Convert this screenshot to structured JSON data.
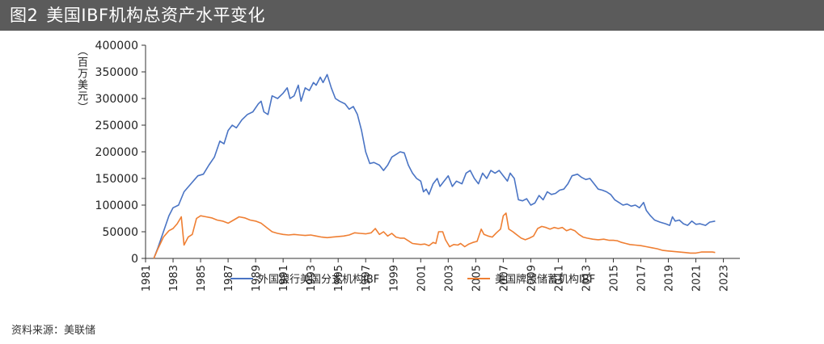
{
  "title": {
    "figure_number": "图2",
    "text": "美国IBF机构总资产水平变化"
  },
  "source": "资料来源：美联储",
  "colors": {
    "title_bg": "#5b5b5b",
    "series_bank": "#4a74c4",
    "series_savings": "#ef7f33",
    "axis": "#333333"
  },
  "chart_data": {
    "type": "line",
    "title": "美国IBF机构总资产水平变化",
    "ylabel": "（百万美元）",
    "xlabel": "",
    "xlim": [
      1981,
      2024.2
    ],
    "ylim": [
      0,
      400000
    ],
    "yticks": [
      0,
      50000,
      100000,
      150000,
      200000,
      250000,
      300000,
      350000,
      400000
    ],
    "ytick_labels": [
      "0",
      "50000",
      "100000",
      "150000",
      "200000",
      "250000",
      "300000",
      "350000",
      "400000"
    ],
    "xticks": [
      1981,
      1983,
      1985,
      1987,
      1989,
      1991,
      1993,
      1995,
      1997,
      1999,
      2001,
      2003,
      2005,
      2007,
      2009,
      2011,
      2013,
      2015,
      2017,
      2019,
      2021,
      2023
    ],
    "xtick_labels": [
      "1981",
      "1983",
      "1985",
      "1987",
      "1989",
      "1991",
      "1993",
      "1995",
      "1997",
      "1999",
      "2001",
      "2003",
      "2005",
      "2007",
      "2009",
      "2011",
      "2013",
      "2015",
      "2017",
      "2019",
      "2021",
      "2023"
    ],
    "legend_position": "bottom",
    "series": [
      {
        "name": "外国银行美国分支机构IBF",
        "color": "#4a74c4",
        "points": [
          [
            1981.6,
            0
          ],
          [
            1981.9,
            20000
          ],
          [
            1982.3,
            50000
          ],
          [
            1982.7,
            80000
          ],
          [
            1983.0,
            95000
          ],
          [
            1983.4,
            100000
          ],
          [
            1983.8,
            125000
          ],
          [
            1984.3,
            140000
          ],
          [
            1984.8,
            155000
          ],
          [
            1985.2,
            158000
          ],
          [
            1985.6,
            175000
          ],
          [
            1986.0,
            190000
          ],
          [
            1986.4,
            220000
          ],
          [
            1986.7,
            215000
          ],
          [
            1987.0,
            240000
          ],
          [
            1987.3,
            250000
          ],
          [
            1987.6,
            245000
          ],
          [
            1988.0,
            260000
          ],
          [
            1988.4,
            270000
          ],
          [
            1988.8,
            275000
          ],
          [
            1989.2,
            290000
          ],
          [
            1989.4,
            295000
          ],
          [
            1989.6,
            275000
          ],
          [
            1989.9,
            270000
          ],
          [
            1990.2,
            305000
          ],
          [
            1990.6,
            300000
          ],
          [
            1991.0,
            310000
          ],
          [
            1991.3,
            320000
          ],
          [
            1991.5,
            300000
          ],
          [
            1991.8,
            305000
          ],
          [
            1992.1,
            325000
          ],
          [
            1992.3,
            295000
          ],
          [
            1992.6,
            320000
          ],
          [
            1992.9,
            315000
          ],
          [
            1993.2,
            330000
          ],
          [
            1993.4,
            325000
          ],
          [
            1993.7,
            340000
          ],
          [
            1993.9,
            330000
          ],
          [
            1994.2,
            345000
          ],
          [
            1994.5,
            320000
          ],
          [
            1994.8,
            300000
          ],
          [
            1995.1,
            295000
          ],
          [
            1995.5,
            290000
          ],
          [
            1995.8,
            280000
          ],
          [
            1996.1,
            285000
          ],
          [
            1996.4,
            270000
          ],
          [
            1996.7,
            240000
          ],
          [
            1997.0,
            200000
          ],
          [
            1997.3,
            178000
          ],
          [
            1997.6,
            180000
          ],
          [
            1998.0,
            175000
          ],
          [
            1998.3,
            165000
          ],
          [
            1998.6,
            175000
          ],
          [
            1998.9,
            190000
          ],
          [
            1999.2,
            195000
          ],
          [
            1999.5,
            200000
          ],
          [
            1999.8,
            198000
          ],
          [
            2000.1,
            175000
          ],
          [
            2000.4,
            160000
          ],
          [
            2000.7,
            150000
          ],
          [
            2001.0,
            145000
          ],
          [
            2001.2,
            125000
          ],
          [
            2001.4,
            130000
          ],
          [
            2001.6,
            120000
          ],
          [
            2001.9,
            140000
          ],
          [
            2002.2,
            150000
          ],
          [
            2002.4,
            135000
          ],
          [
            2002.7,
            145000
          ],
          [
            2003.0,
            155000
          ],
          [
            2003.3,
            135000
          ],
          [
            2003.6,
            145000
          ],
          [
            2004.0,
            140000
          ],
          [
            2004.3,
            160000
          ],
          [
            2004.6,
            165000
          ],
          [
            2004.9,
            150000
          ],
          [
            2005.2,
            140000
          ],
          [
            2005.5,
            160000
          ],
          [
            2005.8,
            150000
          ],
          [
            2006.1,
            165000
          ],
          [
            2006.4,
            160000
          ],
          [
            2006.7,
            165000
          ],
          [
            2007.0,
            155000
          ],
          [
            2007.3,
            145000
          ],
          [
            2007.5,
            160000
          ],
          [
            2007.8,
            150000
          ],
          [
            2008.1,
            110000
          ],
          [
            2008.4,
            108000
          ],
          [
            2008.7,
            112000
          ],
          [
            2009.0,
            100000
          ],
          [
            2009.3,
            104000
          ],
          [
            2009.6,
            118000
          ],
          [
            2009.9,
            110000
          ],
          [
            2010.2,
            125000
          ],
          [
            2010.5,
            120000
          ],
          [
            2010.8,
            122000
          ],
          [
            2011.1,
            128000
          ],
          [
            2011.4,
            130000
          ],
          [
            2011.7,
            140000
          ],
          [
            2012.0,
            155000
          ],
          [
            2012.4,
            158000
          ],
          [
            2012.7,
            152000
          ],
          [
            2013.0,
            148000
          ],
          [
            2013.3,
            150000
          ],
          [
            2013.6,
            140000
          ],
          [
            2013.9,
            130000
          ],
          [
            2014.2,
            128000
          ],
          [
            2014.5,
            125000
          ],
          [
            2014.8,
            120000
          ],
          [
            2015.1,
            110000
          ],
          [
            2015.4,
            105000
          ],
          [
            2015.7,
            100000
          ],
          [
            2016.0,
            102000
          ],
          [
            2016.3,
            98000
          ],
          [
            2016.6,
            100000
          ],
          [
            2016.9,
            95000
          ],
          [
            2017.2,
            105000
          ],
          [
            2017.4,
            90000
          ],
          [
            2017.7,
            80000
          ],
          [
            2018.0,
            72000
          ],
          [
            2018.4,
            68000
          ],
          [
            2018.8,
            65000
          ],
          [
            2019.1,
            62000
          ],
          [
            2019.3,
            78000
          ],
          [
            2019.5,
            70000
          ],
          [
            2019.8,
            72000
          ],
          [
            2020.1,
            65000
          ],
          [
            2020.4,
            62000
          ],
          [
            2020.7,
            70000
          ],
          [
            2021.0,
            64000
          ],
          [
            2021.3,
            65000
          ],
          [
            2021.7,
            62000
          ],
          [
            2022.0,
            68000
          ],
          [
            2022.4,
            70000
          ]
        ]
      },
      {
        "name": "美国牌照储蓄机构IBF",
        "color": "#ef7f33",
        "points": [
          [
            1981.6,
            0
          ],
          [
            1981.9,
            18000
          ],
          [
            1982.3,
            40000
          ],
          [
            1982.7,
            52000
          ],
          [
            1983.0,
            56000
          ],
          [
            1983.3,
            65000
          ],
          [
            1983.6,
            78000
          ],
          [
            1983.8,
            25000
          ],
          [
            1984.1,
            40000
          ],
          [
            1984.4,
            45000
          ],
          [
            1984.7,
            75000
          ],
          [
            1985.0,
            80000
          ],
          [
            1985.4,
            78000
          ],
          [
            1985.8,
            76000
          ],
          [
            1986.2,
            72000
          ],
          [
            1986.6,
            70000
          ],
          [
            1987.0,
            66000
          ],
          [
            1987.4,
            72000
          ],
          [
            1987.8,
            78000
          ],
          [
            1988.2,
            76000
          ],
          [
            1988.6,
            72000
          ],
          [
            1989.0,
            70000
          ],
          [
            1989.4,
            66000
          ],
          [
            1989.8,
            58000
          ],
          [
            1990.2,
            50000
          ],
          [
            1990.6,
            47000
          ],
          [
            1991.0,
            45000
          ],
          [
            1991.4,
            44000
          ],
          [
            1991.8,
            45000
          ],
          [
            1992.2,
            44000
          ],
          [
            1992.6,
            43000
          ],
          [
            1993.0,
            44000
          ],
          [
            1993.4,
            42000
          ],
          [
            1993.8,
            40000
          ],
          [
            1994.2,
            39000
          ],
          [
            1994.6,
            40000
          ],
          [
            1995.0,
            41000
          ],
          [
            1995.4,
            42000
          ],
          [
            1995.8,
            44000
          ],
          [
            1996.2,
            48000
          ],
          [
            1996.6,
            47000
          ],
          [
            1997.0,
            46000
          ],
          [
            1997.4,
            48000
          ],
          [
            1997.7,
            56000
          ],
          [
            1998.0,
            45000
          ],
          [
            1998.3,
            50000
          ],
          [
            1998.6,
            42000
          ],
          [
            1998.9,
            47000
          ],
          [
            1999.2,
            40000
          ],
          [
            1999.5,
            38000
          ],
          [
            1999.8,
            38000
          ],
          [
            2000.1,
            33000
          ],
          [
            2000.4,
            28000
          ],
          [
            2000.7,
            27000
          ],
          [
            2001.0,
            26000
          ],
          [
            2001.3,
            27000
          ],
          [
            2001.6,
            24000
          ],
          [
            2001.9,
            30000
          ],
          [
            2002.1,
            28000
          ],
          [
            2002.3,
            50000
          ],
          [
            2002.6,
            50000
          ],
          [
            2002.8,
            35000
          ],
          [
            2003.1,
            22000
          ],
          [
            2003.4,
            26000
          ],
          [
            2003.7,
            25000
          ],
          [
            2003.9,
            28000
          ],
          [
            2004.2,
            22000
          ],
          [
            2004.5,
            27000
          ],
          [
            2004.8,
            30000
          ],
          [
            2005.1,
            32000
          ],
          [
            2005.4,
            55000
          ],
          [
            2005.6,
            45000
          ],
          [
            2005.9,
            42000
          ],
          [
            2006.2,
            40000
          ],
          [
            2006.5,
            48000
          ],
          [
            2006.8,
            55000
          ],
          [
            2007.0,
            80000
          ],
          [
            2007.2,
            85000
          ],
          [
            2007.4,
            55000
          ],
          [
            2007.7,
            50000
          ],
          [
            2008.0,
            44000
          ],
          [
            2008.3,
            38000
          ],
          [
            2008.6,
            35000
          ],
          [
            2008.9,
            38000
          ],
          [
            2009.2,
            42000
          ],
          [
            2009.5,
            56000
          ],
          [
            2009.8,
            60000
          ],
          [
            2010.1,
            58000
          ],
          [
            2010.4,
            55000
          ],
          [
            2010.7,
            58000
          ],
          [
            2011.0,
            56000
          ],
          [
            2011.3,
            58000
          ],
          [
            2011.6,
            52000
          ],
          [
            2011.9,
            55000
          ],
          [
            2012.2,
            52000
          ],
          [
            2012.5,
            45000
          ],
          [
            2012.8,
            40000
          ],
          [
            2013.1,
            38000
          ],
          [
            2013.5,
            36000
          ],
          [
            2013.9,
            35000
          ],
          [
            2014.3,
            36000
          ],
          [
            2014.7,
            34000
          ],
          [
            2015.0,
            34000
          ],
          [
            2015.3,
            33000
          ],
          [
            2015.6,
            30000
          ],
          [
            2015.9,
            28000
          ],
          [
            2016.2,
            26000
          ],
          [
            2016.6,
            25000
          ],
          [
            2017.0,
            24000
          ],
          [
            2017.4,
            22000
          ],
          [
            2017.8,
            20000
          ],
          [
            2018.2,
            18000
          ],
          [
            2018.6,
            15000
          ],
          [
            2019.0,
            14000
          ],
          [
            2019.4,
            13000
          ],
          [
            2019.8,
            12000
          ],
          [
            2020.2,
            11000
          ],
          [
            2020.6,
            10000
          ],
          [
            2021.0,
            10000
          ],
          [
            2021.4,
            12000
          ],
          [
            2021.8,
            12000
          ],
          [
            2022.2,
            12000
          ],
          [
            2022.4,
            11000
          ]
        ]
      }
    ]
  }
}
